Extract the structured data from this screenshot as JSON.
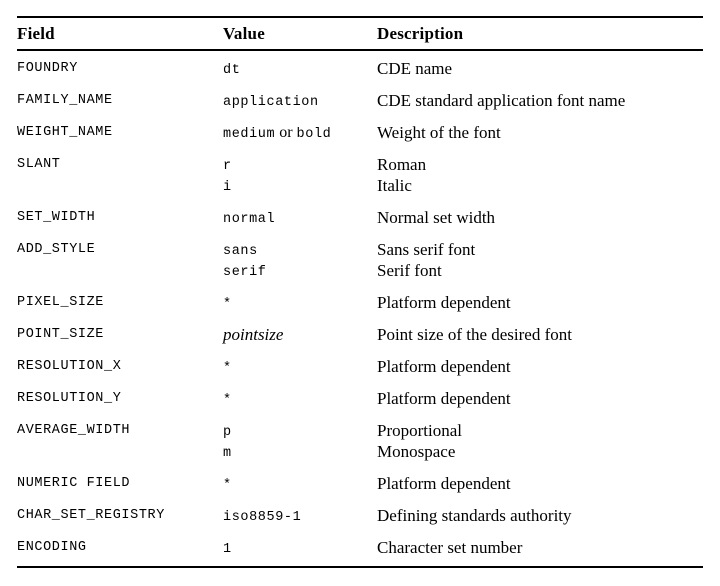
{
  "page": {
    "background_color": "#ffffff",
    "text_color": "#000000",
    "rule_color": "#000000"
  },
  "table": {
    "columns": [
      "Field",
      "Value",
      "Description"
    ],
    "rows": [
      {
        "field": "FOUNDRY",
        "lines": [
          {
            "value": [
              {
                "text": "dt",
                "style": "mono"
              }
            ],
            "desc": "CDE name"
          }
        ]
      },
      {
        "field": "FAMILY_NAME",
        "lines": [
          {
            "value": [
              {
                "text": "application",
                "style": "mono"
              }
            ],
            "desc": "CDE standard application font name"
          }
        ]
      },
      {
        "field": "WEIGHT_NAME",
        "lines": [
          {
            "value": [
              {
                "text": "medium",
                "style": "mono"
              },
              {
                "text": " or ",
                "style": "serif"
              },
              {
                "text": "bold",
                "style": "mono"
              }
            ],
            "desc": "Weight of the font"
          }
        ]
      },
      {
        "field": "SLANT",
        "lines": [
          {
            "value": [
              {
                "text": "r",
                "style": "mono"
              }
            ],
            "desc": "Roman"
          },
          {
            "value": [
              {
                "text": "i",
                "style": "mono"
              }
            ],
            "desc": "Italic"
          }
        ]
      },
      {
        "field": "SET_WIDTH",
        "lines": [
          {
            "value": [
              {
                "text": "normal",
                "style": "mono"
              }
            ],
            "desc": "Normal set width"
          }
        ]
      },
      {
        "field": "ADD_STYLE",
        "lines": [
          {
            "value": [
              {
                "text": "sans",
                "style": "mono"
              }
            ],
            "desc": "Sans serif font"
          },
          {
            "value": [
              {
                "text": "serif",
                "style": "mono"
              }
            ],
            "desc": "Serif font"
          }
        ]
      },
      {
        "field": "PIXEL_SIZE",
        "lines": [
          {
            "value": [
              {
                "text": "*",
                "style": "mono"
              }
            ],
            "desc": "Platform dependent"
          }
        ]
      },
      {
        "field": "POINT_SIZE",
        "lines": [
          {
            "value": [
              {
                "text": "pointsize",
                "style": "italic"
              }
            ],
            "desc": "Point size of the desired font"
          }
        ]
      },
      {
        "field": "RESOLUTION_X",
        "lines": [
          {
            "value": [
              {
                "text": "*",
                "style": "mono"
              }
            ],
            "desc": "Platform dependent"
          }
        ]
      },
      {
        "field": "RESOLUTION_Y",
        "lines": [
          {
            "value": [
              {
                "text": "*",
                "style": "mono"
              }
            ],
            "desc": "Platform dependent"
          }
        ]
      },
      {
        "field": "AVERAGE_WIDTH",
        "lines": [
          {
            "value": [
              {
                "text": "p",
                "style": "mono"
              }
            ],
            "desc": "Proportional"
          },
          {
            "value": [
              {
                "text": "m",
                "style": "mono"
              }
            ],
            "desc": "Monospace"
          }
        ]
      },
      {
        "field": "NUMERIC FIELD",
        "lines": [
          {
            "value": [
              {
                "text": "*",
                "style": "mono"
              }
            ],
            "desc": "Platform dependent"
          }
        ]
      },
      {
        "field": "CHAR_SET_REGISTRY",
        "lines": [
          {
            "value": [
              {
                "text": "iso8859-1",
                "style": "mono"
              }
            ],
            "desc": "Defining standards authority"
          }
        ]
      },
      {
        "field": "ENCODING",
        "lines": [
          {
            "value": [
              {
                "text": "1",
                "style": "mono"
              }
            ],
            "desc": "Character set number"
          }
        ]
      }
    ]
  }
}
